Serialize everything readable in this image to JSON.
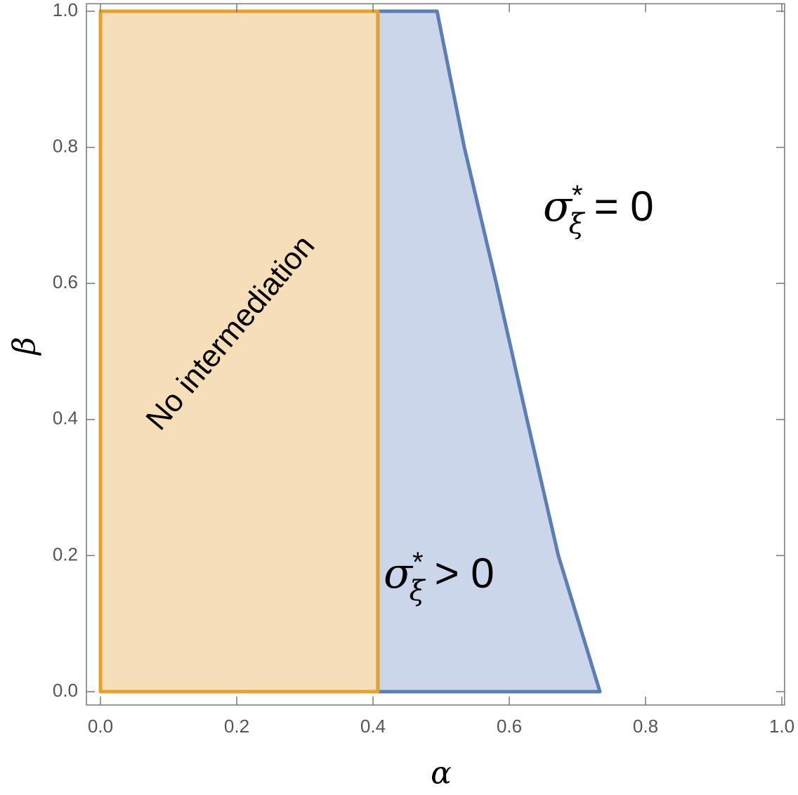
{
  "chart_data": {
    "type": "region",
    "x_label": "α",
    "y_label": "β",
    "xlim": [
      -0.0206,
      1.004
    ],
    "ylim": [
      -0.0196,
      1.011
    ],
    "xticks": [
      {
        "value": 0,
        "label": "0.0"
      },
      {
        "value": 0.2,
        "label": "0.2"
      },
      {
        "value": 0.4,
        "label": "0.4"
      },
      {
        "value": 0.6,
        "label": "0.6"
      },
      {
        "value": 0.8,
        "label": "0.8"
      },
      {
        "value": 1,
        "label": "1.0"
      }
    ],
    "yticks": [
      {
        "value": 0,
        "label": "0.0"
      },
      {
        "value": 0.2,
        "label": "0.2"
      },
      {
        "value": 0.4,
        "label": "0.4"
      },
      {
        "value": 0.6,
        "label": "0.6"
      },
      {
        "value": 0.8,
        "label": "0.8"
      },
      {
        "value": 1,
        "label": "1.0"
      }
    ],
    "series": [
      {
        "color": "#5b7fb5",
        "fill": "#ccd6ea",
        "x": [
          0.407,
          0.733,
          0.672,
          0.626,
          0.581,
          0.534,
          0.494,
          0.407
        ],
        "y": [
          0,
          0,
          0.2,
          0.4,
          0.6,
          0.8,
          1,
          1
        ]
      },
      {
        "color": "#e4a12c",
        "fill": "#f6dfb8",
        "x": [
          0,
          0.407,
          0.407,
          0
        ],
        "y": [
          0,
          0,
          1,
          1
        ]
      }
    ],
    "annotations": [
      {
        "text": "No intermediation"
      },
      {
        "symbol": "σ",
        "sup": "*",
        "sub": "ξ",
        "rest": "= 0"
      },
      {
        "symbol": "σ",
        "sup": "*",
        "sub": "ξ",
        "rest": "> 0"
      }
    ]
  }
}
